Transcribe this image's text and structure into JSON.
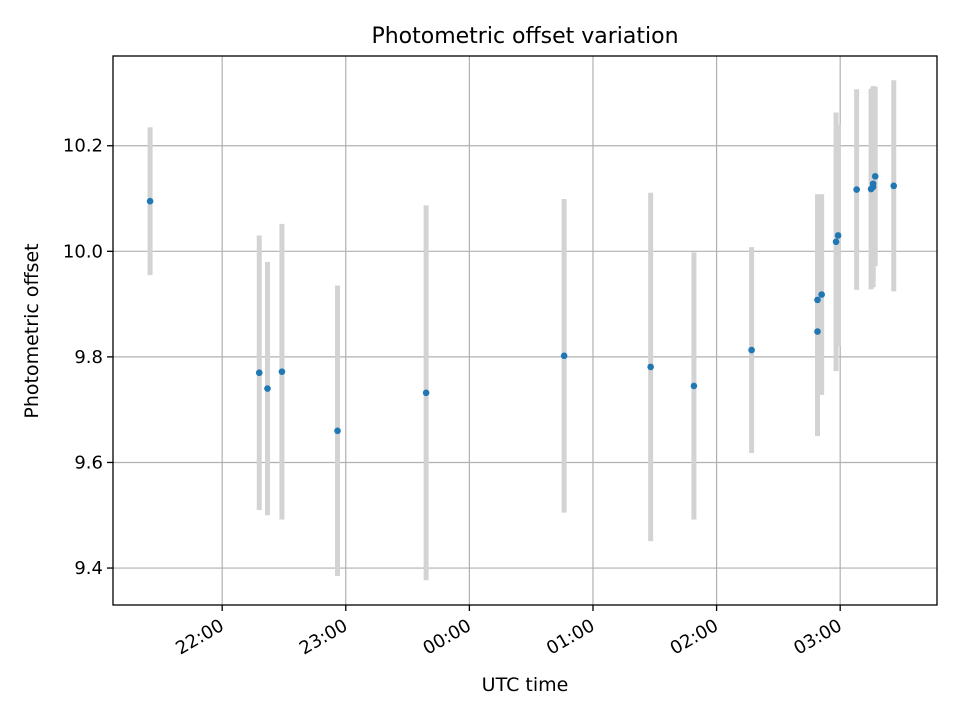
{
  "chart_data": {
    "type": "scatter",
    "title": "Photometric offset variation",
    "xlabel": "UTC time",
    "ylabel": "Photometric offset",
    "x_axis": {
      "kind": "time",
      "range": [
        "21:07",
        "03:47"
      ],
      "ticks": [
        "22:00",
        "23:00",
        "00:00",
        "01:00",
        "02:00",
        "03:00"
      ],
      "tick_times": [
        "22:00",
        "23:00",
        "24:00",
        "25:00",
        "26:00",
        "27:00"
      ]
    },
    "y_axis": {
      "range": [
        9.33,
        10.37
      ],
      "ticks": [
        9.4,
        9.6,
        9.8,
        10.0,
        10.2
      ],
      "tick_labels": [
        "9.4",
        "9.6",
        "9.8",
        "10.0",
        "10.2"
      ]
    },
    "grid": true,
    "colors": {
      "points": "#1f77b4",
      "error_bars": "#d3d3d3"
    },
    "series": [
      {
        "points": [
          {
            "x": "21:25",
            "y": 10.095,
            "err": 0.14
          },
          {
            "x": "22:18",
            "y": 9.77,
            "err": 0.26
          },
          {
            "x": "22:22",
            "y": 9.74,
            "err": 0.24
          },
          {
            "x": "22:29",
            "y": 9.772,
            "err": 0.28
          },
          {
            "x": "22:56",
            "y": 9.66,
            "err": 0.275
          },
          {
            "x": "23:39",
            "y": 9.732,
            "err": 0.355
          },
          {
            "x": "00:46",
            "y": 9.802,
            "err": 0.297
          },
          {
            "x": "01:28",
            "y": 9.781,
            "err": 0.33
          },
          {
            "x": "01:49",
            "y": 9.745,
            "err": 0.253
          },
          {
            "x": "02:17",
            "y": 9.813,
            "err": 0.195
          },
          {
            "x": "02:49",
            "y": 9.848,
            "err": 0.198
          },
          {
            "x": "02:49",
            "y": 9.908,
            "err": 0.2
          },
          {
            "x": "02:51",
            "y": 9.918,
            "err": 0.19
          },
          {
            "x": "02:58",
            "y": 10.018,
            "err": 0.245
          },
          {
            "x": "02:59",
            "y": 10.03,
            "err": 0.21
          },
          {
            "x": "03:08",
            "y": 10.117,
            "err": 0.19
          },
          {
            "x": "03:15",
            "y": 10.118,
            "err": 0.19
          },
          {
            "x": "03:16",
            "y": 10.128,
            "err": 0.185
          },
          {
            "x": "03:16",
            "y": 10.122,
            "err": 0.19
          },
          {
            "x": "03:17",
            "y": 10.142,
            "err": 0.17
          },
          {
            "x": "03:26",
            "y": 10.124,
            "err": 0.2
          }
        ]
      }
    ]
  }
}
